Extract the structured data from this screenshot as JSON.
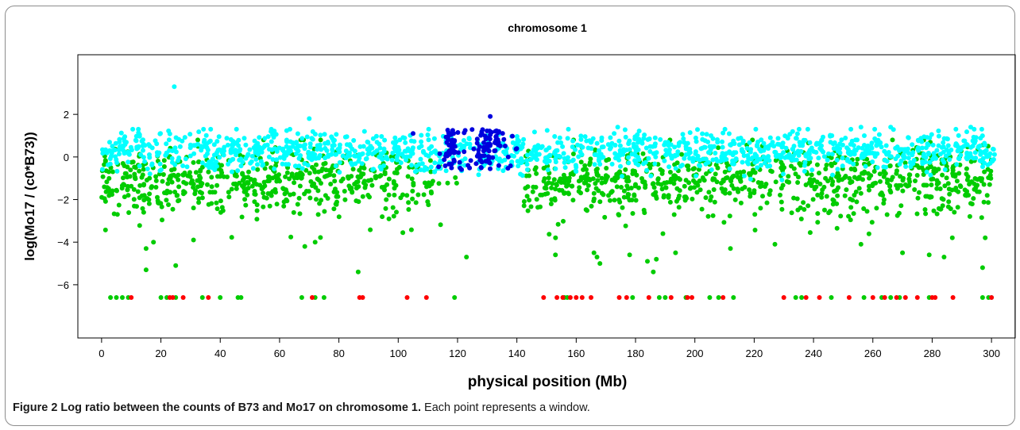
{
  "chart_data": {
    "type": "scatter",
    "title": "chromosome 1",
    "xlabel": "physical position (Mb)",
    "ylabel": "log(Mo17 / (c0*B73))",
    "xlim": [
      -8,
      308
    ],
    "ylim": [
      -8.5,
      4.8
    ],
    "x_ticks": [
      0,
      20,
      40,
      60,
      80,
      100,
      120,
      140,
      160,
      180,
      200,
      220,
      240,
      260,
      280,
      300
    ],
    "y_ticks": [
      -6,
      -4,
      -2,
      0,
      2
    ],
    "grid": false,
    "series": [
      {
        "color": "#00ffff",
        "band": {
          "centre_y": 0.3,
          "spread": 0.45
        },
        "outliers": [
          [
            24.5,
            3.3
          ],
          [
            70.0,
            1.8
          ],
          [
            10.5,
            1.3
          ],
          [
            174.0,
            1.4
          ],
          [
            256.0,
            1.4
          ],
          [
            266.0,
            1.4
          ],
          [
            293.0,
            1.4
          ],
          [
            300.0,
            -6.6
          ]
        ]
      },
      {
        "color": "#00cc00",
        "band": {
          "centre_y": -1.1,
          "spread": 0.75
        },
        "outliers": [
          [
            15.0,
            -4.3
          ],
          [
            15.0,
            -5.3
          ],
          [
            17.5,
            -4.0
          ],
          [
            25.0,
            -5.1
          ],
          [
            31.0,
            -3.9
          ],
          [
            68.5,
            -4.2
          ],
          [
            72.0,
            -4.0
          ],
          [
            86.5,
            -5.4
          ],
          [
            123.0,
            -4.7
          ],
          [
            153.0,
            -4.6
          ],
          [
            166.0,
            -4.5
          ],
          [
            167.0,
            -4.7
          ],
          [
            168.0,
            -5.0
          ],
          [
            178.0,
            -4.6
          ],
          [
            184.0,
            -4.9
          ],
          [
            186.0,
            -5.4
          ],
          [
            187.0,
            -4.8
          ],
          [
            193.5,
            -4.5
          ],
          [
            212.0,
            -4.3
          ],
          [
            227.0,
            -4.1
          ],
          [
            256.0,
            -4.1
          ],
          [
            270.0,
            -4.5
          ],
          [
            279.0,
            -4.6
          ],
          [
            284.0,
            -4.7
          ],
          [
            297.0,
            -5.2
          ],
          [
            3.0,
            -6.6
          ],
          [
            5.0,
            -6.6
          ],
          [
            7.0,
            -6.6
          ],
          [
            9.0,
            -6.6
          ],
          [
            20.0,
            -6.6
          ],
          [
            22.0,
            -6.6
          ],
          [
            25.0,
            -6.6
          ],
          [
            34.0,
            -6.6
          ],
          [
            40.0,
            -6.6
          ],
          [
            46.0,
            -6.6
          ],
          [
            47.0,
            -6.6
          ],
          [
            67.5,
            -6.6
          ],
          [
            72.0,
            -6.6
          ],
          [
            75.0,
            -6.6
          ],
          [
            119.0,
            -6.6
          ],
          [
            156.0,
            -6.6
          ],
          [
            157.0,
            -6.6
          ],
          [
            179.0,
            -6.6
          ],
          [
            188.0,
            -6.6
          ],
          [
            190.0,
            -6.6
          ],
          [
            197.0,
            -6.6
          ],
          [
            205.0,
            -6.6
          ],
          [
            208.0,
            -6.6
          ],
          [
            213.0,
            -6.6
          ],
          [
            234.0,
            -6.6
          ],
          [
            236.0,
            -6.6
          ],
          [
            246.0,
            -6.6
          ],
          [
            257.0,
            -6.6
          ],
          [
            263.0,
            -6.6
          ],
          [
            266.0,
            -6.6
          ],
          [
            269.0,
            -6.6
          ],
          [
            279.0,
            -6.6
          ],
          [
            297.0,
            -6.6
          ],
          [
            299.0,
            -6.6
          ]
        ]
      },
      {
        "color": "#0000dd",
        "cluster": {
          "x": [
            112,
            140
          ],
          "y": [
            -0.6,
            1.3
          ]
        },
        "outliers": [
          [
            105.0,
            1.1
          ],
          [
            117.0,
            1.0
          ],
          [
            131.0,
            1.9
          ]
        ]
      },
      {
        "color": "#ff0000",
        "points": [
          [
            10.0,
            -6.6
          ],
          [
            23.0,
            -6.6
          ],
          [
            24.0,
            -6.6
          ],
          [
            27.5,
            -6.6
          ],
          [
            36.0,
            -6.6
          ],
          [
            71.0,
            -6.6
          ],
          [
            87.0,
            -6.6
          ],
          [
            88.0,
            -6.6
          ],
          [
            103.0,
            -6.6
          ],
          [
            109.5,
            -6.6
          ],
          [
            149.0,
            -6.6
          ],
          [
            153.5,
            -6.6
          ],
          [
            155.5,
            -6.6
          ],
          [
            158.0,
            -6.6
          ],
          [
            160.0,
            -6.6
          ],
          [
            162.0,
            -6.6
          ],
          [
            165.0,
            -6.6
          ],
          [
            174.5,
            -6.6
          ],
          [
            177.0,
            -6.6
          ],
          [
            184.5,
            -6.6
          ],
          [
            192.0,
            -6.6
          ],
          [
            197.5,
            -6.6
          ],
          [
            199.0,
            -6.6
          ],
          [
            209.5,
            -6.6
          ],
          [
            230.0,
            -6.6
          ],
          [
            237.5,
            -6.6
          ],
          [
            242.0,
            -6.6
          ],
          [
            252.0,
            -6.6
          ],
          [
            260.0,
            -6.6
          ],
          [
            264.0,
            -6.6
          ],
          [
            268.0,
            -6.6
          ],
          [
            271.0,
            -6.6
          ],
          [
            275.0,
            -6.6
          ],
          [
            280.0,
            -6.6
          ],
          [
            281.0,
            -6.6
          ],
          [
            287.0,
            -6.6
          ],
          [
            300.0,
            -6.6
          ]
        ]
      }
    ]
  },
  "caption": {
    "bold": "Figure 2 Log ratio between the counts of B73 and Mo17 on chromosome 1.",
    "text": " Each point represents a window."
  }
}
